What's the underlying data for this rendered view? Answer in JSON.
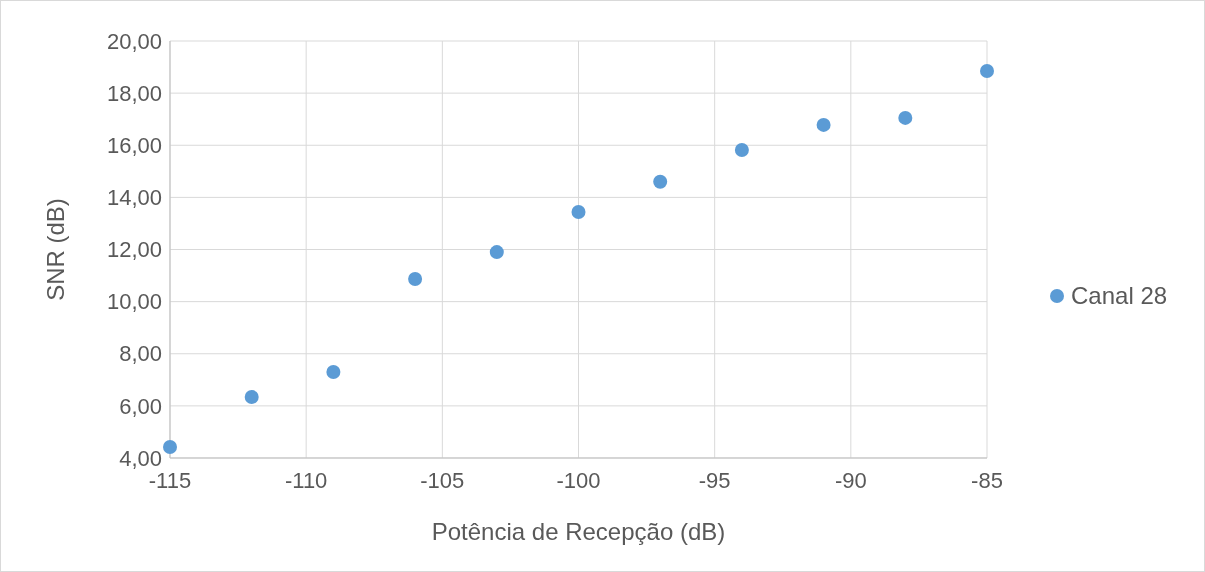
{
  "chart_data": {
    "type": "scatter",
    "xlabel": "Potência de Recepção (dB)",
    "ylabel": "SNR (dB)",
    "x": [
      -115,
      -112,
      -109,
      -106,
      -103,
      -100,
      -97,
      -94,
      -91,
      -88,
      -85
    ],
    "series": [
      {
        "name": "Canal 28",
        "color": "#5b9bd5",
        "values": [
          4.42,
          6.34,
          7.3,
          10.87,
          11.9,
          13.44,
          14.6,
          15.82,
          16.78,
          17.05,
          18.85
        ]
      }
    ],
    "xlim": [
      -115,
      -85
    ],
    "xticks": [
      -115,
      -110,
      -105,
      -100,
      -95,
      -90,
      -85
    ],
    "ylim": [
      4,
      20
    ],
    "yticks": [
      {
        "value": 4,
        "label": "4,00"
      },
      {
        "value": 6,
        "label": "6,00"
      },
      {
        "value": 8,
        "label": "8,00"
      },
      {
        "value": 10,
        "label": "10,00"
      },
      {
        "value": 12,
        "label": "12,00"
      },
      {
        "value": 14,
        "label": "14,00"
      },
      {
        "value": 16,
        "label": "16,00"
      },
      {
        "value": 18,
        "label": "18,00"
      },
      {
        "value": 20,
        "label": "20,00"
      }
    ],
    "grid": true,
    "legend": "right",
    "marker": "circle"
  }
}
